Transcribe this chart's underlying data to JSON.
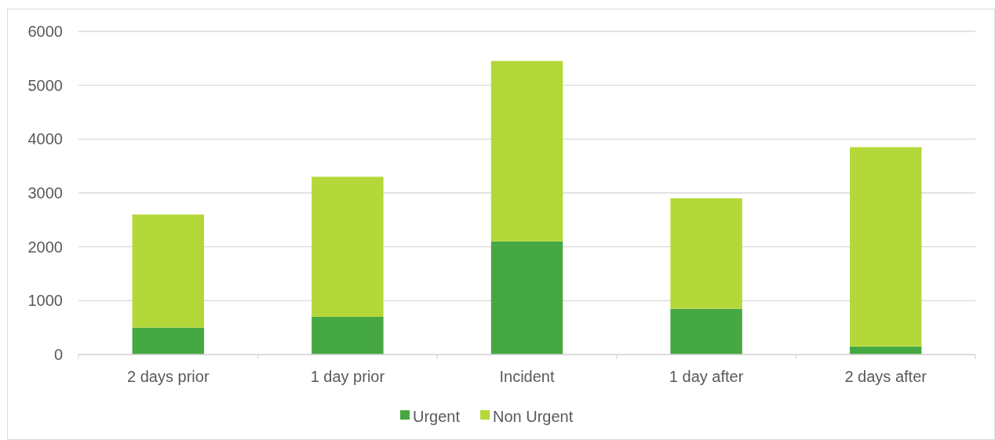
{
  "chart_data": {
    "type": "bar",
    "stacked": true,
    "categories": [
      "2 days prior",
      "1 day prior",
      "Incident",
      "1 day after",
      "2 days after"
    ],
    "series": [
      {
        "name": "Urgent",
        "color": "#46a843",
        "values": [
          500,
          700,
          2100,
          850,
          150
        ]
      },
      {
        "name": "Non Urgent",
        "color": "#b4d839",
        "values": [
          2100,
          2600,
          3350,
          2050,
          3700
        ]
      }
    ],
    "ylim": [
      0,
      6000
    ],
    "yticks": [
      0,
      1000,
      2000,
      3000,
      4000,
      5000,
      6000
    ],
    "grid": "y",
    "legend": "bottom"
  }
}
